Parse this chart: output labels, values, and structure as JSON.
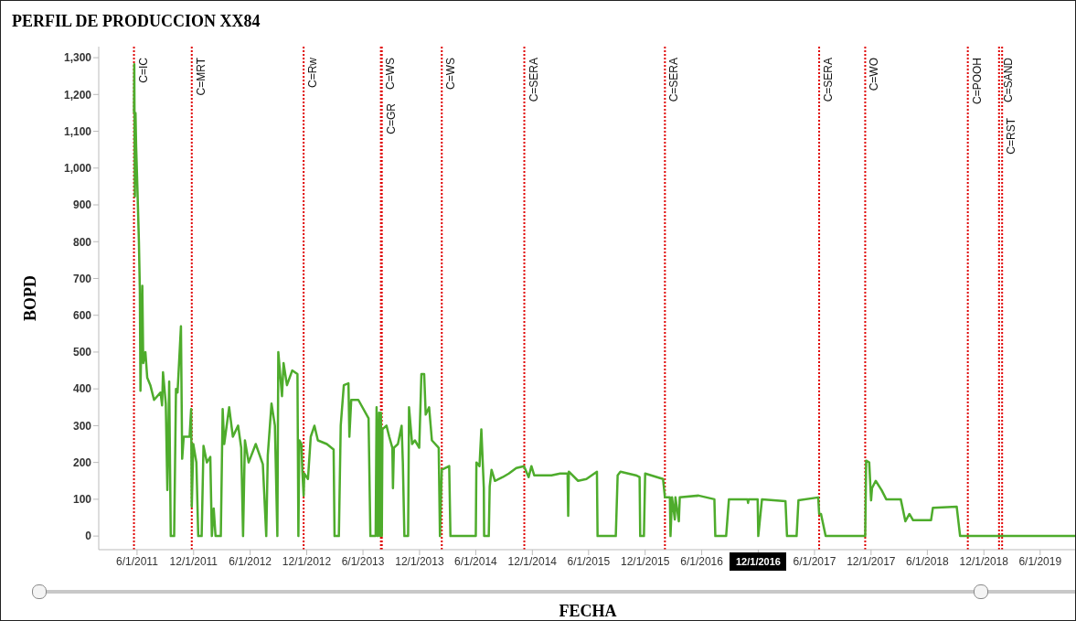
{
  "chart_data": {
    "type": "line",
    "title": "PERFIL DE PRODUCCION XX84",
    "xlabel": "FECHA",
    "ylabel": "BOPD",
    "color": "#4eac2c",
    "x": [
      "2011-05-22",
      "2011-05-23",
      "2011-05-25",
      "2011-05-27",
      "2011-05-29",
      "2011-06-02",
      "2011-06-07",
      "2011-06-10",
      "2011-06-12",
      "2011-06-18",
      "2011-06-21",
      "2011-06-28",
      "2011-07-04",
      "2011-07-14",
      "2011-07-26",
      "2011-08-16",
      "2011-08-21",
      "2011-08-24",
      "2011-09-02",
      "2011-09-07",
      "2011-09-13",
      "2011-09-18",
      "2011-09-29",
      "2011-10-05",
      "2011-10-10",
      "2011-10-21",
      "2011-10-25",
      "2011-10-30",
      "2011-11-18",
      "2011-11-23",
      "2011-11-25",
      "2011-11-30",
      "2011-12-10",
      "2011-12-16",
      "2011-12-27",
      "2012-01-02",
      "2012-01-13",
      "2012-01-24",
      "2012-01-29",
      "2012-02-04",
      "2012-02-10",
      "2012-02-27",
      "2012-03-04",
      "2012-03-09",
      "2012-03-25",
      "2012-04-06",
      "2012-04-23",
      "2012-05-03",
      "2012-05-09",
      "2012-05-15",
      "2012-05-27",
      "2012-06-19",
      "2012-07-12",
      "2012-07-23",
      "2012-07-28",
      "2012-08-09",
      "2012-08-20",
      "2012-08-28",
      "2012-08-31",
      "2012-09-12",
      "2012-09-17",
      "2012-09-28",
      "2012-10-15",
      "2012-11-01",
      "2012-11-04",
      "2012-11-07",
      "2012-11-14",
      "2012-11-17",
      "2012-11-21",
      "2012-11-23",
      "2012-12-05",
      "2012-12-14",
      "2012-12-26",
      "2013-01-06",
      "2013-02-04",
      "2013-02-26",
      "2013-03-01",
      "2013-03-15",
      "2013-03-21",
      "2013-03-31",
      "2013-04-15",
      "2013-04-18",
      "2013-04-24",
      "2013-05-17",
      "2013-06-19",
      "2013-06-25",
      "2013-07-12",
      "2013-07-15",
      "2013-07-19",
      "2013-07-23",
      "2013-07-26",
      "2013-07-29",
      "2013-08-01",
      "2013-08-03",
      "2013-08-16",
      "2013-08-25",
      "2013-09-04",
      "2013-09-06",
      "2013-09-09",
      "2013-09-22",
      "2013-10-04",
      "2013-10-08",
      "2013-10-13",
      "2013-10-25",
      "2013-10-28",
      "2013-11-07",
      "2013-11-16",
      "2013-11-30",
      "2013-12-07",
      "2013-12-16",
      "2013-12-21",
      "2014-01-01",
      "2014-01-10",
      "2014-02-01",
      "2014-02-05",
      "2014-02-11",
      "2014-03-07",
      "2014-03-11",
      "2014-06-01",
      "2014-06-03",
      "2014-06-13",
      "2014-06-19",
      "2014-06-27",
      "2014-06-28",
      "2014-07-13",
      "2014-07-16",
      "2014-07-22",
      "2014-08-02",
      "2014-08-27",
      "2014-09-16",
      "2014-10-10",
      "2014-11-04",
      "2014-11-19",
      "2014-11-28",
      "2014-12-07",
      "2015-02-01",
      "2015-03-01",
      "2015-03-25",
      "2015-03-27",
      "2015-03-29",
      "2015-04-28",
      "2015-05-25",
      "2015-06-28",
      "2015-06-30",
      "2015-08-28",
      "2015-09-03",
      "2015-09-12",
      "2015-11-01",
      "2015-11-13",
      "2015-11-15",
      "2015-11-27",
      "2015-12-01",
      "2016-01-28",
      "2016-02-03",
      "2016-02-19",
      "2016-02-21",
      "2016-02-26",
      "2016-03-06",
      "2016-03-08",
      "2016-03-19",
      "2016-03-22",
      "2016-05-22",
      "2016-07-12",
      "2016-07-15",
      "2016-08-19",
      "2016-08-28",
      "2016-10-27",
      "2016-10-29",
      "2016-10-31",
      "2016-11-29",
      "2016-12-01",
      "2016-12-13",
      "2017-02-27",
      "2017-03-04",
      "2017-04-04",
      "2017-04-10",
      "2017-06-13",
      "2017-06-16",
      "2017-06-22",
      "2017-07-07",
      "2017-11-12",
      "2017-11-15",
      "2017-11-25",
      "2017-12-01",
      "2017-12-04",
      "2017-12-16",
      "2018-01-04",
      "2018-01-19",
      "2018-03-07",
      "2018-03-22",
      "2018-04-04",
      "2018-04-16",
      "2018-06-13",
      "2018-06-19",
      "2018-09-04",
      "2018-09-15",
      "2019-09-28"
    ],
    "values": [
      1150,
      1282,
      923,
      1150,
      1060,
      950,
      800,
      670,
      395,
      680,
      470,
      500,
      430,
      410,
      370,
      390,
      355,
      445,
      360,
      125,
      420,
      0,
      0,
      400,
      390,
      570,
      210,
      270,
      270,
      345,
      80,
      250,
      200,
      0,
      0,
      245,
      200,
      215,
      0,
      75,
      0,
      0,
      345,
      250,
      350,
      270,
      300,
      240,
      0,
      260,
      200,
      250,
      195,
      0,
      220,
      360,
      300,
      0,
      500,
      380,
      470,
      410,
      450,
      440,
      0,
      260,
      250,
      175,
      110,
      170,
      155,
      270,
      300,
      260,
      250,
      235,
      0,
      0,
      300,
      410,
      415,
      270,
      370,
      370,
      320,
      0,
      0,
      350,
      0,
      335,
      0,
      335,
      0,
      290,
      300,
      270,
      240,
      130,
      240,
      250,
      300,
      200,
      0,
      0,
      350,
      250,
      260,
      240,
      440,
      440,
      330,
      350,
      260,
      240,
      0,
      180,
      190,
      0,
      0,
      200,
      190,
      290,
      130,
      0,
      0,
      135,
      180,
      150,
      160,
      170,
      185,
      190,
      160,
      190,
      165,
      165,
      170,
      170,
      55,
      175,
      150,
      155,
      175,
      0,
      0,
      165,
      175,
      165,
      160,
      0,
      0,
      170,
      155,
      105,
      105,
      0,
      105,
      45,
      105,
      40,
      105,
      110,
      100,
      0,
      0,
      100,
      100,
      90,
      100,
      100,
      0,
      100,
      95,
      0,
      0,
      97,
      105,
      60,
      60,
      0,
      0,
      205,
      200,
      97,
      130,
      150,
      125,
      100,
      100,
      40,
      60,
      43,
      43,
      77,
      80,
      0,
      0
    ],
    "xlim": [
      "2011-01-28",
      "2019-09-28"
    ],
    "xticks": [
      {
        "value": "2011-06-01",
        "label": "6/1/2011"
      },
      {
        "value": "2011-12-01",
        "label": "12/1/2011"
      },
      {
        "value": "2012-06-01",
        "label": "6/1/2012"
      },
      {
        "value": "2012-12-01",
        "label": "12/1/2012"
      },
      {
        "value": "2013-06-01",
        "label": "6/1/2013"
      },
      {
        "value": "2013-12-01",
        "label": "12/1/2013"
      },
      {
        "value": "2014-06-01",
        "label": "6/1/2014"
      },
      {
        "value": "2014-12-01",
        "label": "12/1/2014"
      },
      {
        "value": "2015-06-01",
        "label": "6/1/2015"
      },
      {
        "value": "2015-12-01",
        "label": "12/1/2015"
      },
      {
        "value": "2016-06-01",
        "label": "6/1/2016"
      },
      {
        "value": "2016-12-01",
        "label": null
      },
      {
        "value": "2017-06-01",
        "label": "6/1/2017"
      },
      {
        "value": "2017-12-01",
        "label": "12/1/2017"
      },
      {
        "value": "2018-06-01",
        "label": "6/1/2018"
      },
      {
        "value": "2018-12-01",
        "label": "12/1/2018"
      },
      {
        "value": "2019-06-01",
        "label": "6/1/2019"
      }
    ],
    "ylim": [
      -37,
      1330
    ],
    "yticks": [
      0,
      100,
      200,
      300,
      400,
      500,
      600,
      700,
      800,
      900,
      {
        "value": 1000,
        "label": "1,000"
      },
      {
        "value": 1100,
        "label": "1,100"
      },
      {
        "value": 1200,
        "label": "1,200"
      },
      {
        "value": 1300,
        "label": "1,300"
      }
    ],
    "ref_lines": [
      {
        "axis": "x",
        "value": "2011-05-22",
        "label": "C=IC",
        "color": "#e00000",
        "line_style": "dotted"
      },
      {
        "axis": "x",
        "value": "2011-11-25",
        "label": "C=MRT",
        "color": "#e00000",
        "line_style": "dotted"
      },
      {
        "axis": "x",
        "value": "2012-11-21",
        "label": "C=Rw",
        "color": "#e00000",
        "line_style": "dotted"
      },
      {
        "axis": "x",
        "value": "2013-07-29",
        "label": "C=WS",
        "color": "#e00000",
        "line_style": "dotted"
      },
      {
        "axis": "x",
        "value": "2013-08-01",
        "label": "C=GR",
        "color": "#e00000",
        "line_style": "dotted"
      },
      {
        "axis": "x",
        "value": "2014-02-11",
        "label": "C=WS",
        "color": "#e00000",
        "line_style": "dotted"
      },
      {
        "axis": "x",
        "value": "2014-11-05",
        "label": "C=SERA",
        "color": "#e00000",
        "line_style": "dotted"
      },
      {
        "axis": "x",
        "value": "2016-02-03",
        "label": "C=SERA",
        "color": "#e00000",
        "line_style": "dotted"
      },
      {
        "axis": "x",
        "value": "2017-06-16",
        "label": "C=SERA",
        "color": "#e00000",
        "line_style": "dotted"
      },
      {
        "axis": "x",
        "value": "2017-11-12",
        "label": "C=WO",
        "color": "#e00000",
        "line_style": "dotted"
      },
      {
        "axis": "x",
        "value": "2018-10-10",
        "label": "C=POOH",
        "color": "#e00000",
        "line_style": "dotted"
      },
      {
        "axis": "x",
        "value": "2019-01-19",
        "label": "C=SAND",
        "color": "#e00000",
        "line_style": "dotted"
      },
      {
        "axis": "x",
        "value": "2019-01-29",
        "label": "C=RST",
        "color": "#e00000",
        "line_style": "dotted"
      }
    ],
    "annotations": [
      "12/1/2016"
    ]
  }
}
